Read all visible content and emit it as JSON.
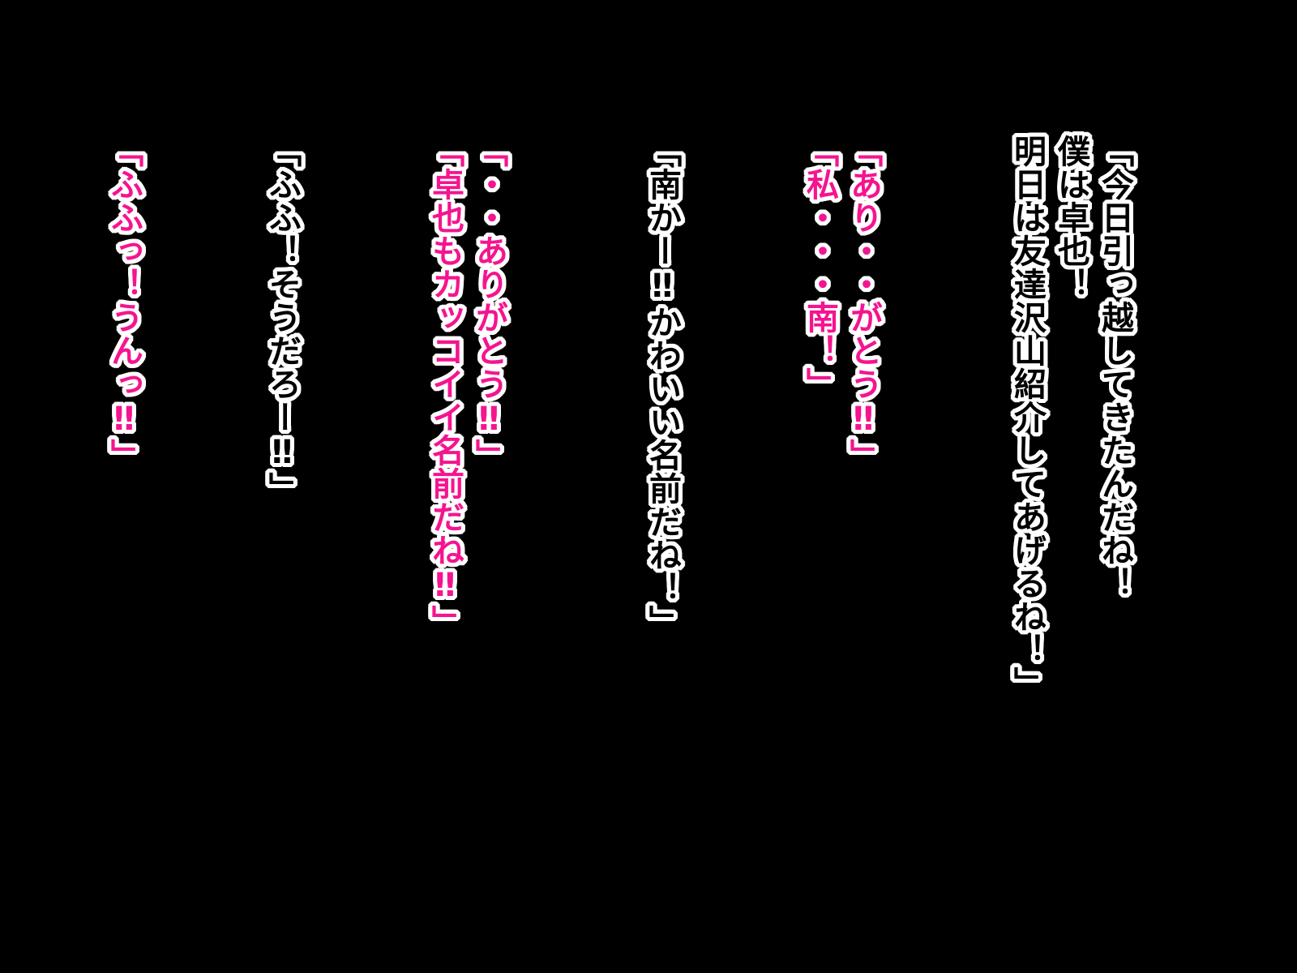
{
  "page": {
    "background_color": "#000000",
    "outline_color": "#ffffff",
    "hollow_text_fill": "#000000",
    "pink_text_fill": "#f5148f",
    "writing_direction_note": "vertical text, columns read right to left"
  },
  "dialogue": [
    {
      "color": "white",
      "text": "「今日引っ越してきたんだね！\n僕は卓也！\n明日は友達沢山紹介してあげるね！」"
    },
    {
      "color": "pink",
      "text": "「あり・・がとう‼」\n「私・・・南！」"
    },
    {
      "color": "white",
      "text": "「南かー‼かわいい名前だね！」"
    },
    {
      "color": "pink",
      "text": "「・・ありがとう‼」\n「卓也もカッコイイ名前だね‼」"
    },
    {
      "color": "white",
      "text": "「ふふ！そうだろー‼」"
    },
    {
      "color": "pink",
      "text": "「ふふっ！うんっ‼」"
    }
  ]
}
